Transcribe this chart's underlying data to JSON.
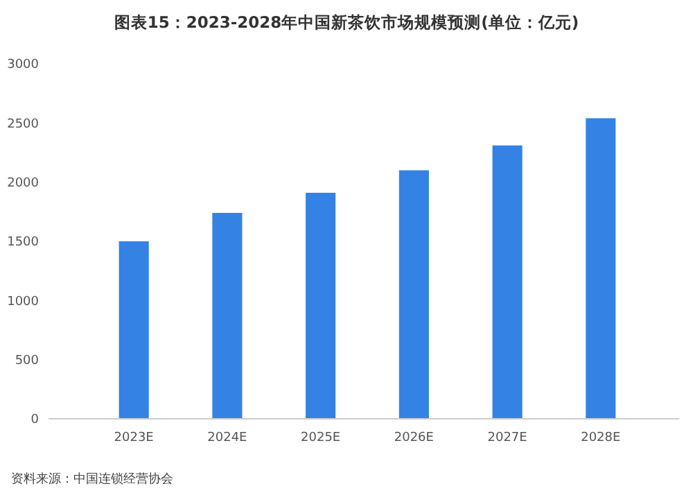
{
  "chart_data": {
    "type": "bar",
    "title": "图表15：2023-2028年中国新茶饮市场规模预测(单位：亿元)",
    "categories": [
      "2023E",
      "2024E",
      "2025E",
      "2026E",
      "2027E",
      "2028E"
    ],
    "values": [
      1500,
      1740,
      1910,
      2100,
      2310,
      2540
    ],
    "color": "#3483e4",
    "ylim": [
      0,
      3000
    ],
    "yticks": [
      0,
      500,
      1000,
      1500,
      2000,
      2500,
      3000
    ],
    "grid": false,
    "annotations": [
      "资料来源：中国连锁经营协会"
    ]
  }
}
